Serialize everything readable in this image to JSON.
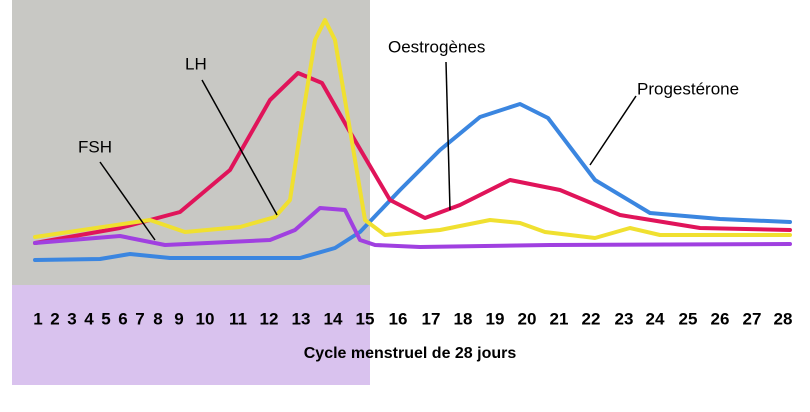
{
  "labels": {
    "fsh": "FSH",
    "lh": "LH",
    "oestrogen": "Oestrogènes",
    "progesterone": "Progestérone"
  },
  "days": [
    "1",
    "2",
    "3",
    "4",
    "5",
    "6",
    "7",
    "8",
    "9",
    "10",
    "11",
    "12",
    "13",
    "14",
    "15",
    "16",
    "17",
    "18",
    "19",
    "20",
    "21",
    "22",
    "23",
    "24",
    "25",
    "26",
    "27",
    "28"
  ],
  "axis_label": "Cycle menstruel de 28 jours"
}
